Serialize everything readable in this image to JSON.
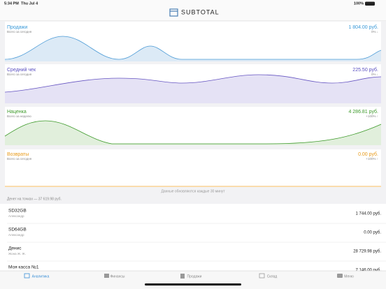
{
  "status_bar": {
    "time": "5:34 PM",
    "date": "Thu Jul 4",
    "battery": "100%"
  },
  "header": {
    "title": "SUBTOTAL"
  },
  "cards": [
    {
      "title": "Продажи",
      "subtitle": "Всего за сегодня",
      "value": "1 804.00 руб.",
      "change": "0% ↓"
    },
    {
      "title": "Средний чек",
      "subtitle": "Всего за сегодня",
      "value": "225.50 руб.",
      "change": "0% ↓"
    },
    {
      "title": "Наценка",
      "subtitle": "Всего за неделю",
      "value": "4 286.81 руб.",
      "change": "+100% ↑"
    },
    {
      "title": "Возвраты",
      "subtitle": "Всего за сегодня",
      "value": "0.00 руб.",
      "change": "+100% ↑"
    }
  ],
  "update_note": "Данные обновляются каждые 30 минут",
  "section_header": "Денег на точках — 37 619.98 руб.",
  "list": [
    {
      "name": "SD32GB",
      "owner": "Александр",
      "amount": "1 744.00 руб."
    },
    {
      "name": "SD64GB",
      "owner": "Александр",
      "amount": "0.00 руб."
    },
    {
      "name": "Денис",
      "owner": "Жона Ж. Ж.",
      "amount": "28 729.98 руб."
    },
    {
      "name": "Моя касса №1",
      "amount": "7 146.00 руб."
    }
  ],
  "tabs": [
    "Аналитика",
    "Финансы",
    "Продажи",
    "Склад",
    "Меню"
  ]
}
